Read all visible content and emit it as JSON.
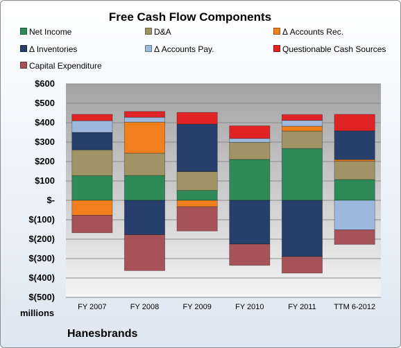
{
  "chart_data": {
    "type": "bar",
    "stacked": true,
    "title": "Free Cash Flow Components",
    "unit_label": "millions",
    "company": "Hanesbrands",
    "categories": [
      "FY 2007",
      "FY 2008",
      "FY 2009",
      "FY 2010",
      "FY 2011",
      "TTM 6-2012"
    ],
    "ylim": [
      -500,
      600
    ],
    "yticks": [
      600,
      500,
      400,
      300,
      200,
      100,
      0,
      -100,
      -200,
      -300,
      -400,
      -500
    ],
    "ytick_labels": [
      "$600",
      "$500",
      "$400",
      "$300",
      "$200",
      "$100",
      "$-",
      "$(100)",
      "$(200)",
      "$(300)",
      "$(400)",
      "$(500)"
    ],
    "grid": true,
    "legend": "top",
    "series": [
      {
        "name": "Net Income",
        "color": "#2e8a57",
        "values": [
          127,
          128,
          51,
          211,
          267,
          107
        ]
      },
      {
        "name": "D&A",
        "color": "#a09467",
        "values": [
          133,
          115,
          97,
          88,
          90,
          95
        ]
      },
      {
        "name": "Δ Accounts Rec.",
        "color": "#f07f1e",
        "values": [
          -77,
          160,
          -33,
          0,
          25,
          8
        ]
      },
      {
        "name": "Δ Inventories",
        "color": "#26406b",
        "values": [
          90,
          -177,
          245,
          -225,
          -290,
          148
        ]
      },
      {
        "name": "Δ Accounts Pay.",
        "color": "#9db8dd",
        "values": [
          60,
          25,
          0,
          20,
          30,
          -152
        ]
      },
      {
        "name": "Questionable Cash Sources",
        "color": "#e02325",
        "values": [
          33,
          30,
          60,
          65,
          30,
          85
        ]
      },
      {
        "name": "Capital Expenditure",
        "color": "#a65258",
        "values": [
          -90,
          -185,
          -125,
          -110,
          -85,
          -75
        ]
      }
    ]
  }
}
